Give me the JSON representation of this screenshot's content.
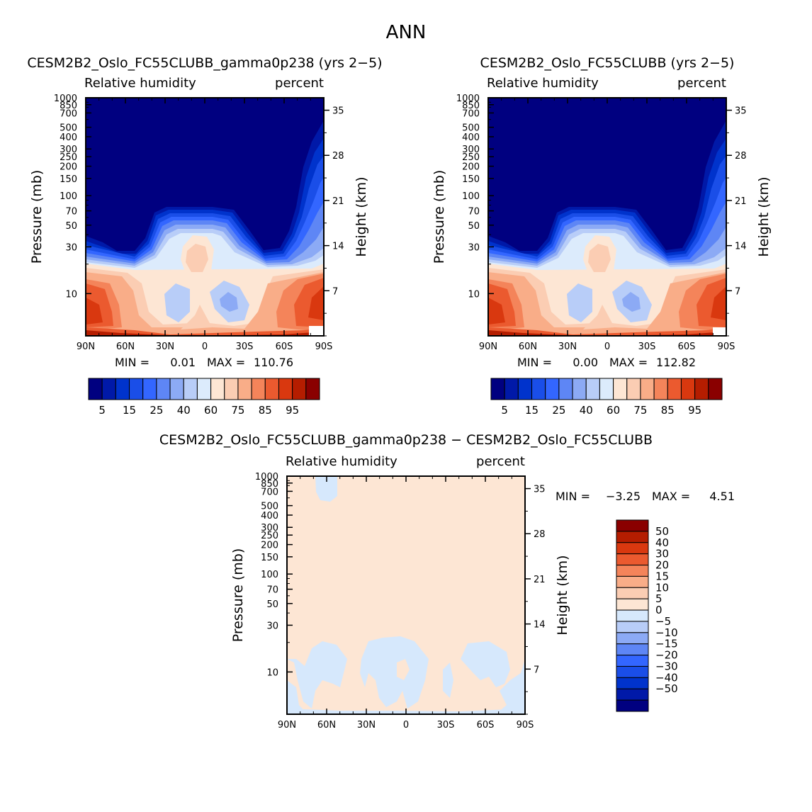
{
  "page_title": "ANN",
  "colors": {
    "abs_levels": [
      "#000080",
      "#0019a8",
      "#0033cc",
      "#1a4ee8",
      "#3366ff",
      "#5e86f5",
      "#8caaf5",
      "#b8cdf8",
      "#dcebfc",
      "#fde6d4",
      "#fbcdb3",
      "#f9ad88",
      "#f4845a",
      "#eb5a2f",
      "#d9380f",
      "#b51d00",
      "#8a0000"
    ],
    "diff_levels": [
      "#000080",
      "#0019a8",
      "#0033cc",
      "#1a4ee8",
      "#3366ff",
      "#5e86f5",
      "#8caaf5",
      "#b8cdf8",
      "#d6e8fc",
      "#fde6d4",
      "#fbcdb3",
      "#f9ad88",
      "#f4845a",
      "#eb5a2f",
      "#d9380f",
      "#b51d00",
      "#8a0000"
    ]
  },
  "chart_data": [
    {
      "type": "heatmap",
      "title": "CESM2B2_Oslo_FC55CLUBB_gamma0p238 (yrs 2−5)",
      "left_label": "Relative humidity",
      "right_label": "percent",
      "ylabel": "Pressure (mb)",
      "y2label": "Height (km)",
      "x_ticks": [
        "90N",
        "60N",
        "30N",
        "0",
        "30S",
        "60S",
        "90S"
      ],
      "y_ticks": [
        "10",
        "30",
        "50",
        "70",
        "100",
        "150",
        "200",
        "250",
        "300",
        "400",
        "500",
        "700",
        "850",
        "1000"
      ],
      "y2_ticks": [
        "35",
        "28",
        "21",
        "14",
        "7"
      ],
      "min_text": "MIN =",
      "min_value": "0.01",
      "max_text": "MAX =",
      "max_value": "110.76",
      "colorbar_labels": [
        "5",
        "15",
        "25",
        "40",
        "60",
        "75",
        "85",
        "95"
      ]
    },
    {
      "type": "heatmap",
      "title": "CESM2B2_Oslo_FC55CLUBB (yrs 2−5)",
      "left_label": "Relative humidity",
      "right_label": "percent",
      "ylabel": "Pressure (mb)",
      "y2label": "Height (km)",
      "x_ticks": [
        "90N",
        "60N",
        "30N",
        "0",
        "30S",
        "60S",
        "90S"
      ],
      "y_ticks": [
        "10",
        "30",
        "50",
        "70",
        "100",
        "150",
        "200",
        "250",
        "300",
        "400",
        "500",
        "700",
        "850",
        "1000"
      ],
      "y2_ticks": [
        "35",
        "28",
        "21",
        "14",
        "7"
      ],
      "min_text": "MIN =",
      "min_value": "0.00",
      "max_text": "MAX =",
      "max_value": "112.82",
      "colorbar_labels": [
        "5",
        "15",
        "25",
        "40",
        "60",
        "75",
        "85",
        "95"
      ]
    },
    {
      "type": "heatmap",
      "title": "CESM2B2_Oslo_FC55CLUBB_gamma0p238 − CESM2B2_Oslo_FC55CLUBB",
      "left_label": "Relative humidity",
      "right_label": "percent",
      "ylabel": "Pressure (mb)",
      "y2label": "Height (km)",
      "x_ticks": [
        "90N",
        "60N",
        "30N",
        "0",
        "30S",
        "60S",
        "90S"
      ],
      "y_ticks": [
        "10",
        "30",
        "50",
        "70",
        "100",
        "150",
        "200",
        "250",
        "300",
        "400",
        "500",
        "700",
        "850",
        "1000"
      ],
      "y2_ticks": [
        "35",
        "28",
        "21",
        "14",
        "7"
      ],
      "min_text": "MIN =",
      "min_value": "−3.25",
      "max_text": "MAX =",
      "max_value": "4.51",
      "colorbar_labels": [
        "50",
        "40",
        "30",
        "20",
        "15",
        "10",
        "5",
        "0",
        "−5",
        "−10",
        "−15",
        "−20",
        "−30",
        "−40",
        "−50"
      ]
    }
  ]
}
